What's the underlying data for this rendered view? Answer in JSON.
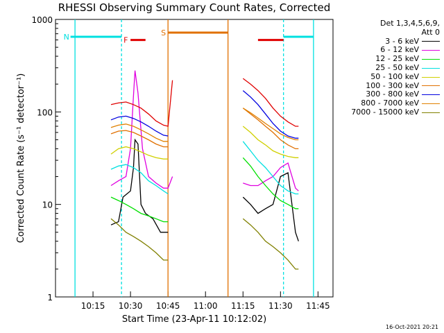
{
  "chart_data": {
    "type": "line",
    "title": "RHESSI Observing Summary Count Rates, Corrected",
    "xlabel": "Start Time (23-Apr-11 10:12:02)",
    "ylabel": "Corrected Count Rate (s⁻¹ detector⁻¹)",
    "ylim": [
      1,
      1000
    ],
    "yscale": "log",
    "y_ticks": [
      "1",
      "10",
      "100",
      "1000"
    ],
    "x_ticks": [
      "10:15",
      "10:30",
      "10:45",
      "11:00",
      "11:15",
      "11:30",
      "11:45"
    ],
    "legend_header": [
      "Det 1,3,4,5,6,9,",
      "Att 0"
    ],
    "legend_placement": "right",
    "timestamp": "16-Oct-2021 20:21",
    "series": [
      {
        "name": "3 - 6 keV",
        "color": "#000000",
        "values": [
          [
            10.37,
            6
          ],
          [
            10.42,
            6.5
          ],
          [
            10.45,
            12
          ],
          [
            10.5,
            14
          ],
          [
            10.52,
            25
          ],
          [
            10.53,
            50
          ],
          [
            10.55,
            45
          ],
          [
            10.57,
            10
          ],
          [
            10.6,
            8
          ],
          [
            10.65,
            7
          ],
          [
            10.7,
            5
          ],
          [
            10.75,
            5
          ],
          [
            11.25,
            12
          ],
          [
            11.3,
            10
          ],
          [
            11.35,
            8
          ],
          [
            11.4,
            9
          ],
          [
            11.45,
            10
          ],
          [
            11.5,
            20
          ],
          [
            11.55,
            22
          ],
          [
            11.6,
            5
          ],
          [
            11.62,
            4
          ]
        ]
      },
      {
        "name": "6 - 12 keV",
        "color": "#e000e0",
        "values": [
          [
            10.37,
            16
          ],
          [
            10.42,
            18
          ],
          [
            10.47,
            20
          ],
          [
            10.5,
            40
          ],
          [
            10.52,
            150
          ],
          [
            10.53,
            280
          ],
          [
            10.55,
            160
          ],
          [
            10.58,
            40
          ],
          [
            10.62,
            20
          ],
          [
            10.67,
            17
          ],
          [
            10.72,
            15
          ],
          [
            10.75,
            15
          ],
          [
            10.78,
            20
          ],
          [
            11.25,
            17
          ],
          [
            11.3,
            16
          ],
          [
            11.35,
            16
          ],
          [
            11.4,
            18
          ],
          [
            11.45,
            20
          ],
          [
            11.5,
            25
          ],
          [
            11.55,
            28
          ],
          [
            11.6,
            15
          ],
          [
            11.62,
            14
          ]
        ]
      },
      {
        "name": "12 - 25 keV",
        "color": "#00e000",
        "values": [
          [
            10.37,
            12
          ],
          [
            10.42,
            11
          ],
          [
            10.47,
            10
          ],
          [
            10.52,
            9
          ],
          [
            10.57,
            8
          ],
          [
            10.62,
            7.5
          ],
          [
            10.67,
            7
          ],
          [
            10.72,
            6.5
          ],
          [
            10.75,
            6.5
          ],
          [
            11.25,
            32
          ],
          [
            11.3,
            26
          ],
          [
            11.35,
            20
          ],
          [
            11.4,
            16
          ],
          [
            11.45,
            13
          ],
          [
            11.5,
            11
          ],
          [
            11.55,
            10
          ],
          [
            11.6,
            9
          ],
          [
            11.62,
            9
          ]
        ]
      },
      {
        "name": "25 - 50 keV",
        "color": "#00e0e0",
        "values": [
          [
            10.37,
            24
          ],
          [
            10.42,
            26
          ],
          [
            10.47,
            27
          ],
          [
            10.52,
            25
          ],
          [
            10.57,
            22
          ],
          [
            10.62,
            18
          ],
          [
            10.67,
            16
          ],
          [
            10.72,
            14
          ],
          [
            10.75,
            13
          ],
          [
            11.25,
            48
          ],
          [
            11.3,
            38
          ],
          [
            11.35,
            30
          ],
          [
            11.4,
            25
          ],
          [
            11.45,
            20
          ],
          [
            11.5,
            16
          ],
          [
            11.55,
            14
          ],
          [
            11.6,
            13
          ],
          [
            11.62,
            13
          ]
        ]
      },
      {
        "name": "50 - 100 keV",
        "color": "#d0d000",
        "values": [
          [
            10.37,
            35
          ],
          [
            10.42,
            40
          ],
          [
            10.47,
            42
          ],
          [
            10.52,
            40
          ],
          [
            10.57,
            37
          ],
          [
            10.62,
            34
          ],
          [
            10.67,
            32
          ],
          [
            10.72,
            31
          ],
          [
            10.75,
            31
          ],
          [
            11.25,
            70
          ],
          [
            11.3,
            60
          ],
          [
            11.35,
            50
          ],
          [
            11.4,
            44
          ],
          [
            11.45,
            38
          ],
          [
            11.5,
            35
          ],
          [
            11.55,
            33
          ],
          [
            11.6,
            32
          ],
          [
            11.62,
            32
          ]
        ]
      },
      {
        "name": "100 - 300 keV",
        "color": "#e07000",
        "values": [
          [
            10.37,
            58
          ],
          [
            10.42,
            62
          ],
          [
            10.47,
            63
          ],
          [
            10.52,
            60
          ],
          [
            10.57,
            55
          ],
          [
            10.62,
            50
          ],
          [
            10.67,
            45
          ],
          [
            10.72,
            42
          ],
          [
            10.75,
            42
          ],
          [
            11.25,
            110
          ],
          [
            11.3,
            95
          ],
          [
            11.35,
            82
          ],
          [
            11.4,
            70
          ],
          [
            11.45,
            60
          ],
          [
            11.5,
            50
          ],
          [
            11.55,
            44
          ],
          [
            11.6,
            40
          ],
          [
            11.62,
            40
          ]
        ]
      },
      {
        "name": "300 - 800 keV",
        "color": "#0000e0",
        "values": [
          [
            10.37,
            82
          ],
          [
            10.42,
            88
          ],
          [
            10.47,
            90
          ],
          [
            10.52,
            85
          ],
          [
            10.57,
            78
          ],
          [
            10.62,
            70
          ],
          [
            10.67,
            62
          ],
          [
            10.72,
            56
          ],
          [
            10.75,
            55
          ],
          [
            11.25,
            170
          ],
          [
            11.3,
            145
          ],
          [
            11.35,
            120
          ],
          [
            11.4,
            95
          ],
          [
            11.45,
            75
          ],
          [
            11.5,
            62
          ],
          [
            11.55,
            55
          ],
          [
            11.6,
            52
          ],
          [
            11.62,
            52
          ]
        ]
      },
      {
        "name": "800 - 7000 keV",
        "color": "#e08000",
        "values": [
          [
            10.37,
            68
          ],
          [
            10.42,
            72
          ],
          [
            10.47,
            74
          ],
          [
            10.52,
            70
          ],
          [
            10.57,
            64
          ],
          [
            10.62,
            58
          ],
          [
            10.67,
            52
          ],
          [
            10.72,
            48
          ],
          [
            10.75,
            48
          ],
          [
            11.25,
            110
          ],
          [
            11.3,
            98
          ],
          [
            11.35,
            86
          ],
          [
            11.4,
            75
          ],
          [
            11.45,
            66
          ],
          [
            11.5,
            58
          ],
          [
            11.55,
            53
          ],
          [
            11.6,
            50
          ],
          [
            11.62,
            50
          ]
        ]
      },
      {
        "name": "7000 - 15000 keV",
        "color": "#808000",
        "values": [
          [
            10.37,
            7
          ],
          [
            10.42,
            6
          ],
          [
            10.47,
            5
          ],
          [
            10.52,
            4.5
          ],
          [
            10.57,
            4
          ],
          [
            10.62,
            3.5
          ],
          [
            10.67,
            3
          ],
          [
            10.72,
            2.5
          ],
          [
            10.75,
            2.5
          ],
          [
            11.25,
            7
          ],
          [
            11.3,
            6
          ],
          [
            11.35,
            5
          ],
          [
            11.4,
            4
          ],
          [
            11.45,
            3.5
          ],
          [
            11.5,
            3
          ],
          [
            11.55,
            2.5
          ],
          [
            11.6,
            2
          ],
          [
            11.62,
            2
          ]
        ]
      },
      {
        "name": "",
        "color": "#e00000",
        "values": [
          [
            10.37,
            120
          ],
          [
            10.42,
            125
          ],
          [
            10.47,
            128
          ],
          [
            10.52,
            120
          ],
          [
            10.57,
            110
          ],
          [
            10.62,
            95
          ],
          [
            10.67,
            80
          ],
          [
            10.72,
            72
          ],
          [
            10.75,
            70
          ],
          [
            10.78,
            220
          ],
          [
            11.25,
            230
          ],
          [
            11.3,
            200
          ],
          [
            11.35,
            170
          ],
          [
            11.4,
            140
          ],
          [
            11.45,
            110
          ],
          [
            11.5,
            90
          ],
          [
            11.55,
            78
          ],
          [
            11.6,
            70
          ],
          [
            11.62,
            70
          ]
        ]
      }
    ],
    "flags": [
      {
        "label": "F",
        "color": "#e00000",
        "segments": [
          [
            10.5,
            10.6
          ],
          [
            11.35,
            11.52
          ]
        ],
        "level": 600
      },
      {
        "label": "N",
        "color": "#00e0e0",
        "segments": [
          [
            10.1,
            10.44
          ],
          [
            11.52,
            11.72
          ]
        ],
        "level": 650
      },
      {
        "label": "S",
        "color": "#e07000",
        "segments": [
          [
            10.75,
            11.15
          ]
        ],
        "level": 720
      }
    ]
  }
}
